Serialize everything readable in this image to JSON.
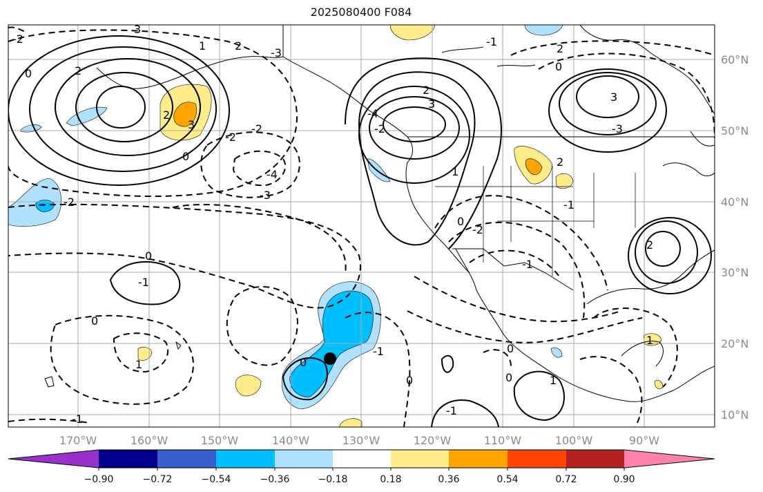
{
  "title": "2025080400 F084",
  "colors": {
    "neg_090": "#9932cc",
    "neg_072": "#00008b",
    "neg_054": "#3a5fcd",
    "neg_036": "#00bfff",
    "neg_018": "#b0e2ff",
    "zero": "#ffffff",
    "pos_018": "#ffec8b",
    "pos_036": "#ffa500",
    "pos_054": "#ff4500",
    "pos_072": "#b22222",
    "pos_090": "#ff82ab",
    "contour": "#000000",
    "grid": "#a9a9a9",
    "coast": "#000000"
  },
  "latitudes": [
    "60°N",
    "50°N",
    "40°N",
    "30°N",
    "20°N",
    "10°N"
  ],
  "longitudes": [
    "170°W",
    "160°W",
    "150°W",
    "140°W",
    "130°W",
    "120°W",
    "110°W",
    "100°W",
    "90°W"
  ],
  "colorbar": {
    "tick_labels": [
      "−0.90",
      "−0.72",
      "−0.54",
      "−0.36",
      "−0.18",
      "0.18",
      "0.36",
      "0.54",
      "0.72",
      "0.90"
    ]
  },
  "contour_labels": [
    "-2",
    "-2",
    "0",
    "1",
    "2",
    "3",
    "-3",
    "-4",
    "-3",
    "-2",
    "0",
    "3",
    "2",
    "0",
    "3",
    "-2",
    "2",
    "-1",
    "0",
    "-1",
    "2",
    "3",
    "-3",
    "0",
    "-1",
    "0",
    "1",
    "-1",
    "0",
    "-1",
    "0",
    "-2",
    "2",
    "0",
    "1",
    "-1",
    "1",
    "0",
    "1",
    "2",
    "-4",
    "-2",
    "-1",
    "2"
  ]
}
